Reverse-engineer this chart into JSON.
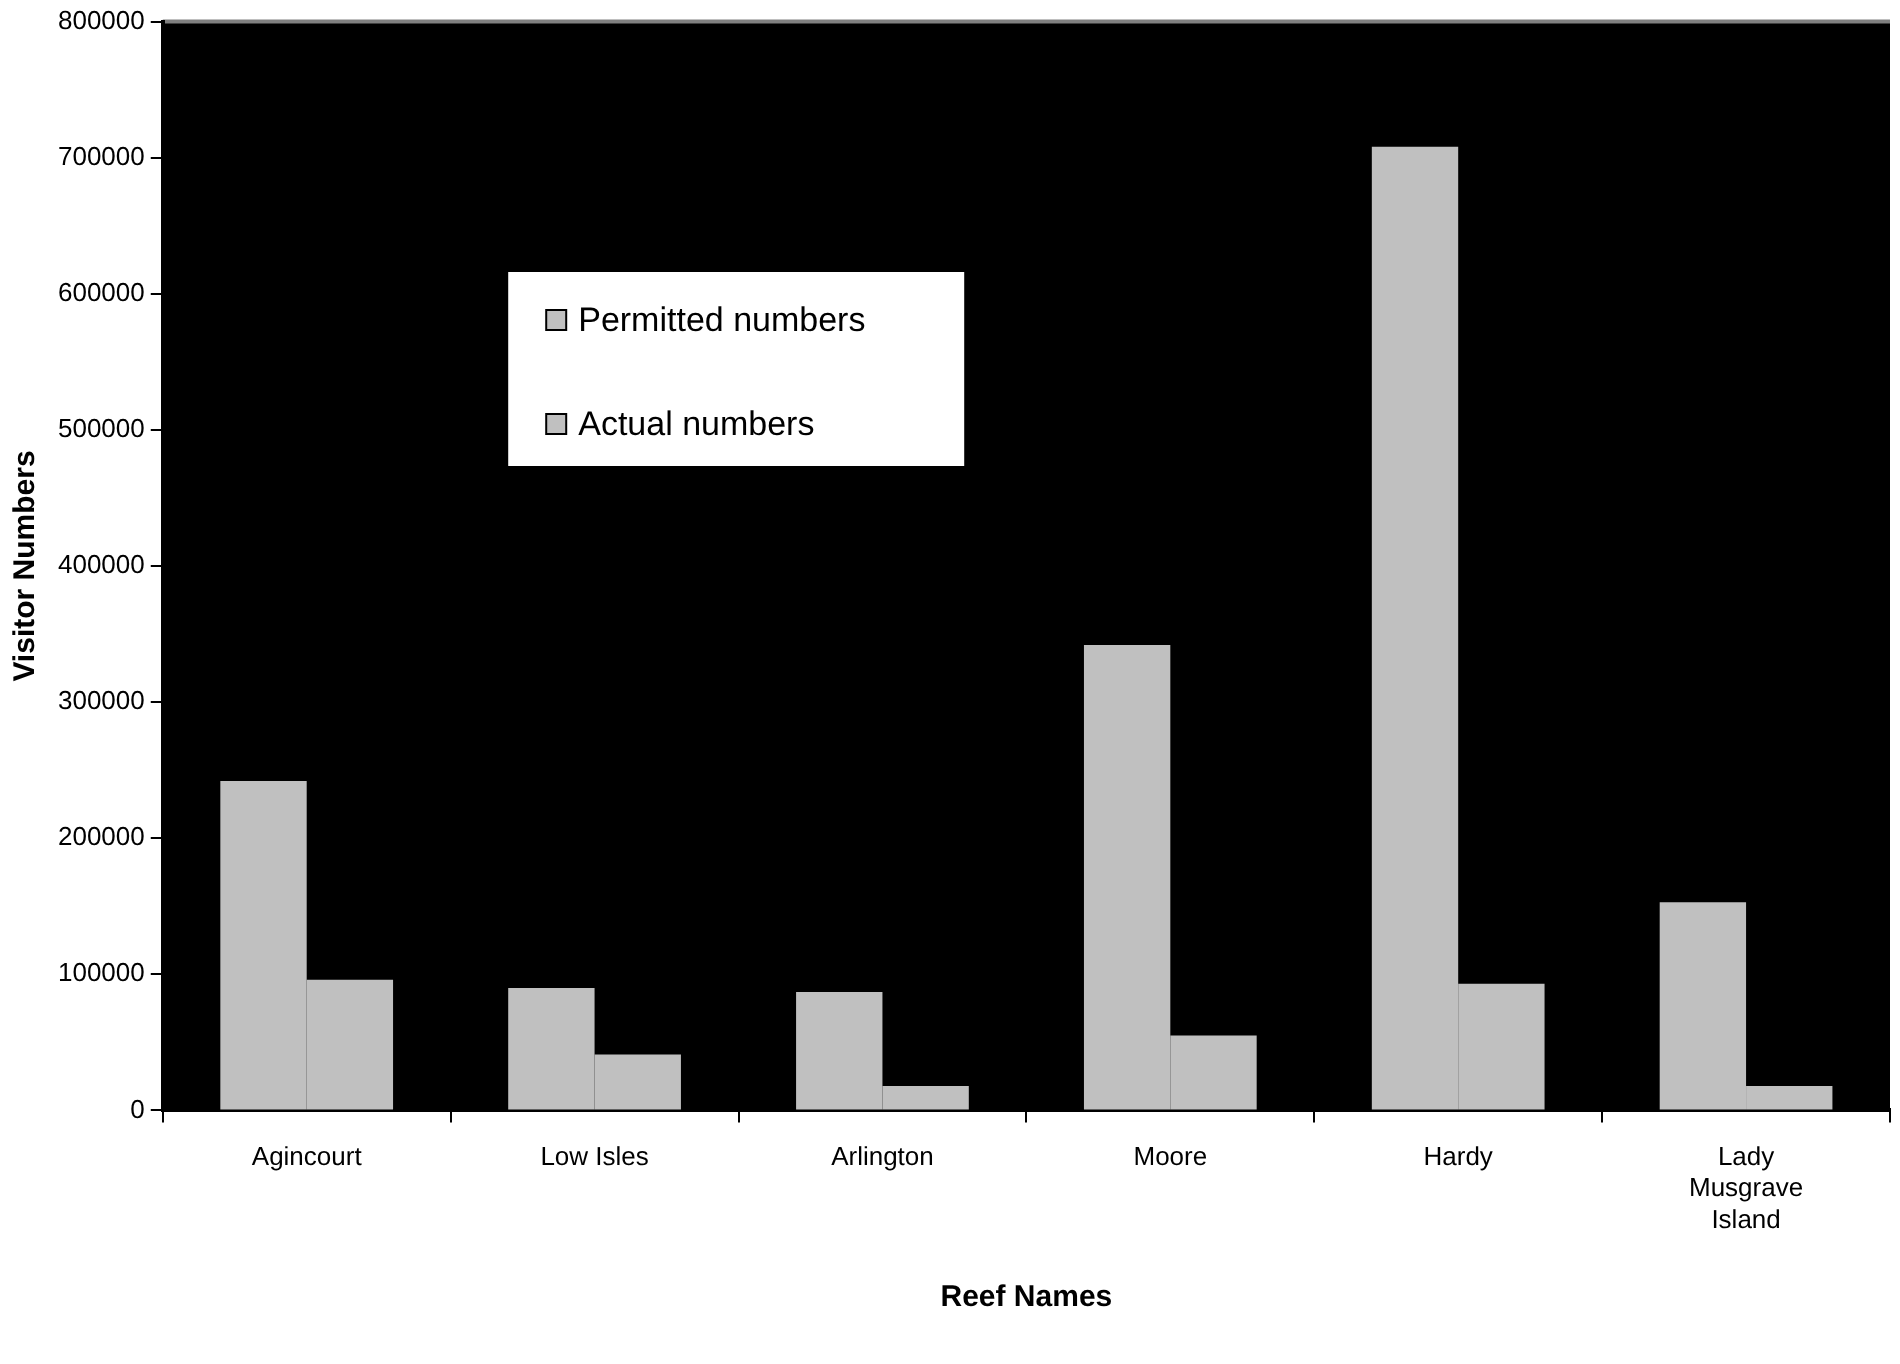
{
  "chart_data": {
    "type": "bar",
    "xlabel": "Reef Names",
    "ylabel": "Visitor Numbers",
    "categories": [
      "Agincourt",
      "Low Isles",
      "Arlington",
      "Moore",
      "Hardy",
      "Lady Musgrave Island"
    ],
    "series": [
      {
        "name": "Permitted numbers",
        "color": "#c0c0c0",
        "values": [
          242000,
          90000,
          87000,
          342000,
          708000,
          153000
        ]
      },
      {
        "name": "Actual numbers",
        "color": "#c0c0c0",
        "values": [
          96000,
          41000,
          18000,
          55000,
          93000,
          18000
        ]
      }
    ],
    "ylim": [
      0,
      800000
    ],
    "yticks": [
      0,
      100000,
      200000,
      300000,
      400000,
      500000,
      600000,
      700000,
      800000
    ],
    "grid": false,
    "legend": "top left"
  }
}
